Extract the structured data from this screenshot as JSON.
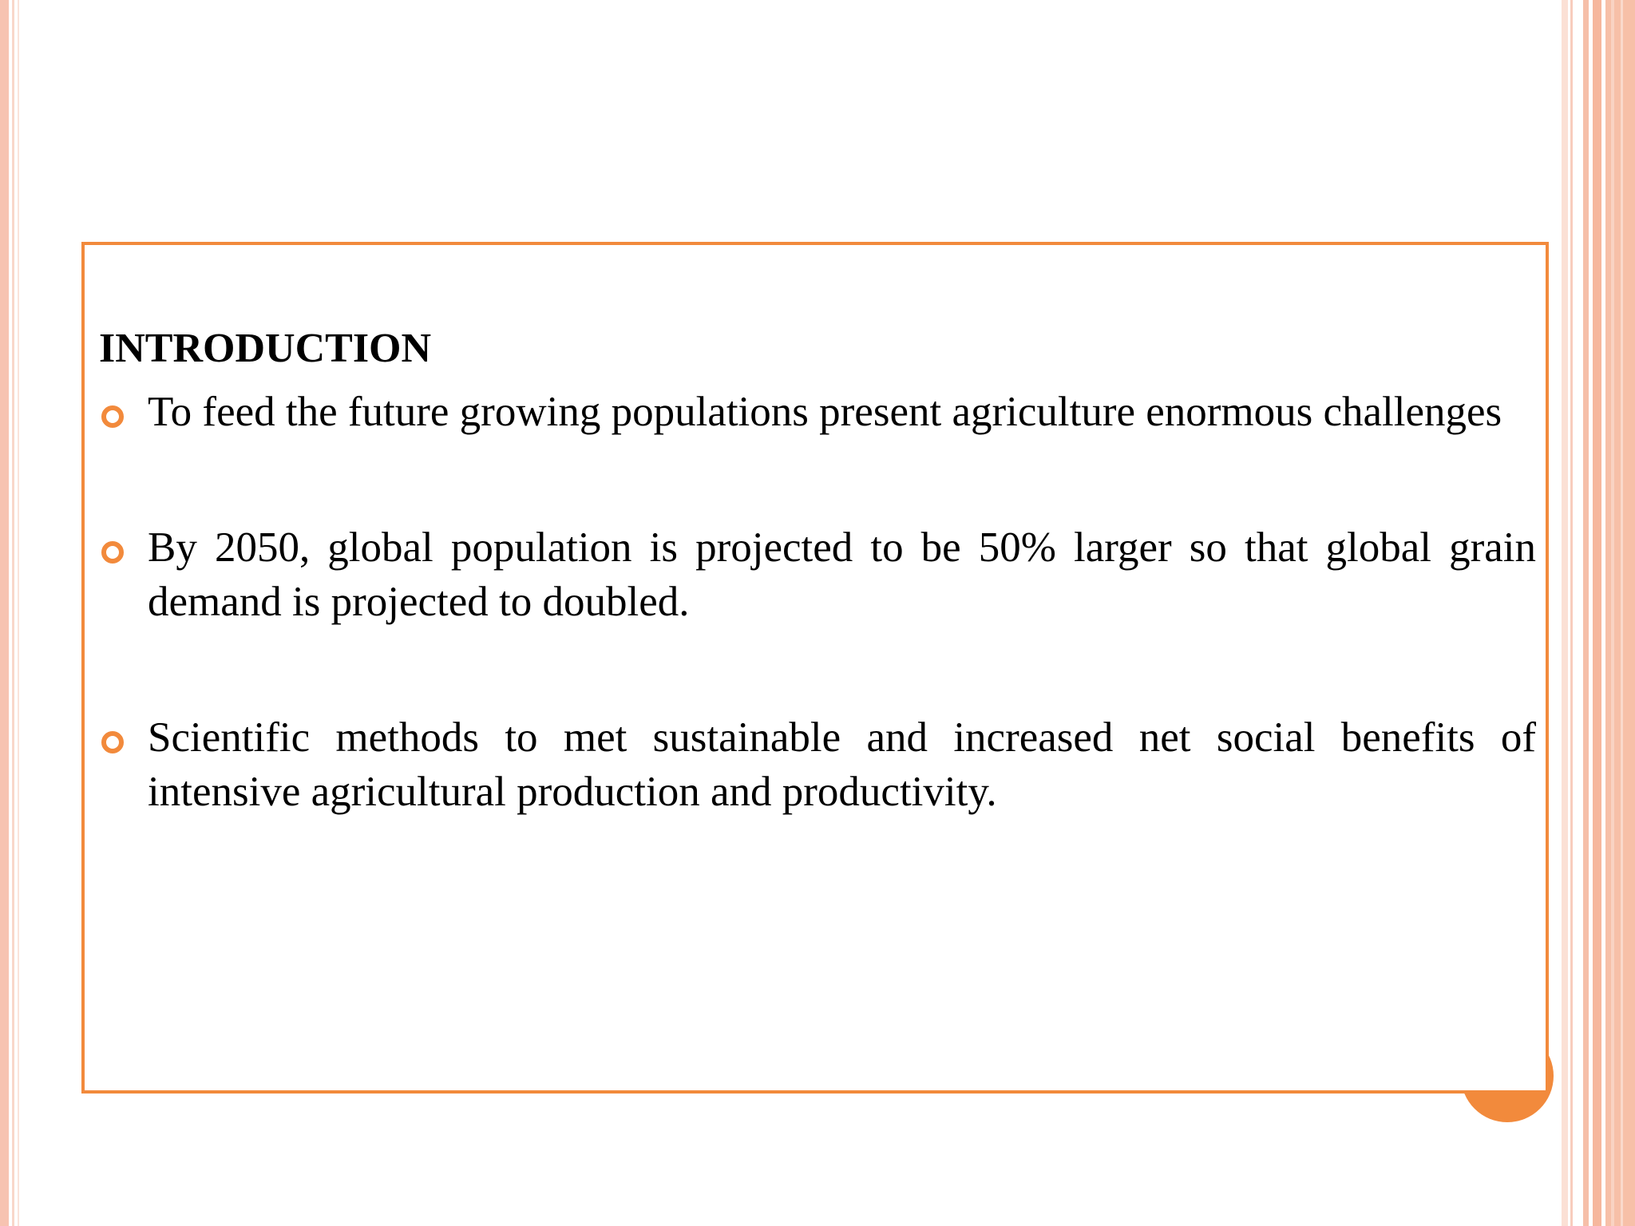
{
  "slide": {
    "heading": "INTRODUCTION",
    "bullets": [
      {
        "text": "To feed the future growing populations present agriculture enormous challenges"
      },
      {
        "text": "By 2050, global population is projected to be 50% larger so that global grain demand is projected to doubled."
      },
      {
        "text": "Scientific methods to met sustainable and increased net social benefits of intensive agricultural production and productivity."
      }
    ]
  },
  "theme": {
    "accent_color": "#f28a3c",
    "stripe_color": "#f7c0a8",
    "bullet_icon": "hollow-circle-icon"
  }
}
